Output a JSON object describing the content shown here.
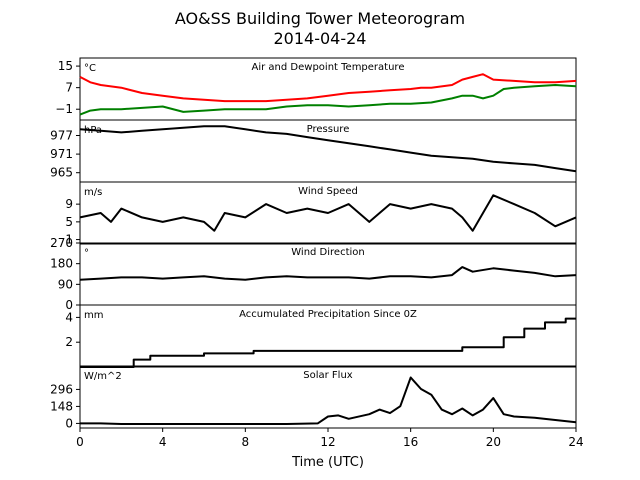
{
  "title": "AO&SS Building Tower Meteorogram",
  "subtitle": "2014-04-24",
  "xlabel": "Time (UTC)",
  "chart_data": [
    {
      "type": "line",
      "title": "Air and Dewpoint Temperature",
      "unit": "°C",
      "xlim": [
        0,
        24
      ],
      "ylim": [
        -5,
        18
      ],
      "yticks": [
        15,
        7,
        -1
      ],
      "series": [
        {
          "color": "#ff0000",
          "x": [
            0,
            0.5,
            1,
            2,
            3,
            4,
            5,
            6,
            7,
            8,
            9,
            10,
            11,
            12,
            13,
            14,
            15,
            16,
            16.5,
            17,
            18,
            18.5,
            19,
            19.5,
            20,
            21,
            22,
            23,
            24
          ],
          "y": [
            11,
            9,
            8,
            7,
            5,
            4,
            3,
            2.5,
            2,
            2,
            2,
            2.5,
            3,
            4,
            5,
            5.5,
            6,
            6.5,
            7,
            7,
            8,
            10,
            11,
            12,
            10,
            9.5,
            9,
            9,
            9.5
          ]
        },
        {
          "color": "#008000",
          "x": [
            0,
            0.5,
            1,
            2,
            3,
            4,
            5,
            6,
            7,
            8,
            9,
            10,
            11,
            12,
            13,
            14,
            15,
            16,
            17,
            18,
            18.5,
            19,
            19.5,
            20,
            20.5,
            21,
            22,
            23,
            24
          ],
          "y": [
            -3,
            -1.5,
            -1,
            -1,
            -0.5,
            0,
            -2,
            -1.5,
            -1,
            -1,
            -1,
            0,
            0.5,
            0.5,
            0,
            0.5,
            1,
            1,
            1.5,
            3,
            4,
            4,
            3,
            4,
            6.5,
            7,
            7.5,
            8,
            7.5
          ]
        }
      ]
    },
    {
      "type": "line",
      "title": "Pressure",
      "unit": "hPa",
      "xlim": [
        0,
        24
      ],
      "ylim": [
        962,
        982
      ],
      "yticks": [
        977,
        971,
        965
      ],
      "series": [
        {
          "color": "#000000",
          "x": [
            0,
            1,
            2,
            3,
            4,
            5,
            6,
            7,
            8,
            9,
            10,
            11,
            12,
            13,
            14,
            15,
            16,
            17,
            18,
            19,
            20,
            21,
            22,
            23,
            24
          ],
          "y": [
            979,
            978.5,
            978,
            978.5,
            979,
            979.5,
            980,
            980,
            979,
            978,
            977.5,
            976.5,
            975.5,
            974.5,
            973.5,
            972.5,
            971.5,
            970.5,
            970,
            969.5,
            968.5,
            968,
            967.5,
            966.5,
            965.5
          ]
        }
      ]
    },
    {
      "type": "line",
      "title": "Wind Speed",
      "unit": "m/s",
      "xlim": [
        0,
        24
      ],
      "ylim": [
        0,
        14
      ],
      "yticks": [
        9,
        5,
        1
      ],
      "series": [
        {
          "color": "#000000",
          "x": [
            0,
            1,
            1.5,
            2,
            3,
            4,
            5,
            6,
            6.5,
            7,
            8,
            9,
            10,
            11,
            12,
            13,
            14,
            15,
            16,
            17,
            18,
            18.5,
            19,
            19.5,
            20,
            21,
            22,
            23,
            24
          ],
          "y": [
            6,
            7,
            5,
            8,
            6,
            5,
            6,
            5,
            3,
            7,
            6,
            9,
            7,
            8,
            7,
            9,
            5,
            9,
            8,
            9,
            8,
            6,
            3,
            7,
            11,
            9,
            7,
            4,
            6
          ]
        }
      ]
    },
    {
      "type": "line",
      "title": "Wind Direction",
      "unit": "°",
      "xlim": [
        0,
        24
      ],
      "ylim": [
        0,
        270
      ],
      "yticks": [
        270,
        180,
        90,
        0
      ],
      "series": [
        {
          "color": "#000000",
          "x": [
            0,
            1,
            2,
            3,
            4,
            5,
            6,
            7,
            8,
            9,
            10,
            11,
            12,
            13,
            14,
            15,
            16,
            17,
            18,
            18.5,
            19,
            20,
            21,
            22,
            23,
            24
          ],
          "y": [
            110,
            115,
            120,
            120,
            115,
            120,
            125,
            115,
            110,
            120,
            125,
            120,
            120,
            120,
            115,
            125,
            125,
            120,
            130,
            165,
            145,
            160,
            150,
            140,
            125,
            130
          ]
        }
      ]
    },
    {
      "type": "line",
      "title": "Accumulated Precipitation Since 0Z",
      "unit": "mm",
      "xlim": [
        0,
        24
      ],
      "ylim": [
        0,
        5
      ],
      "yticks": [
        4,
        2
      ],
      "series": [
        {
          "color": "#000000",
          "x": [
            0,
            2.6,
            2.6,
            3.4,
            3.4,
            6,
            6,
            8.4,
            8.4,
            18.5,
            18.5,
            20.5,
            20.5,
            21.5,
            21.5,
            22.5,
            22.5,
            23.5,
            23.5,
            24
          ],
          "y": [
            0,
            0,
            0.6,
            0.6,
            0.9,
            0.9,
            1.1,
            1.1,
            1.3,
            1.3,
            1.6,
            1.6,
            2.4,
            2.4,
            3.1,
            3.1,
            3.6,
            3.6,
            3.9,
            3.9
          ]
        }
      ]
    },
    {
      "type": "line",
      "title": "Solar Flux",
      "unit": "W/m^2",
      "xlim": [
        0,
        24
      ],
      "ylim": [
        -40,
        500
      ],
      "yticks": [
        296,
        148,
        0
      ],
      "series": [
        {
          "color": "#000000",
          "x": [
            0,
            1,
            2,
            4,
            6,
            8,
            10,
            11.5,
            12,
            12.5,
            13,
            14,
            14.5,
            15,
            15.5,
            16,
            16.5,
            17,
            17.5,
            18,
            18.5,
            19,
            19.5,
            20,
            20.5,
            21,
            22,
            23,
            24
          ],
          "y": [
            0,
            0,
            -5,
            -5,
            -5,
            -5,
            -5,
            0,
            60,
            70,
            40,
            80,
            120,
            90,
            150,
            400,
            300,
            250,
            120,
            80,
            130,
            70,
            120,
            220,
            80,
            60,
            50,
            30,
            10
          ]
        }
      ]
    }
  ]
}
